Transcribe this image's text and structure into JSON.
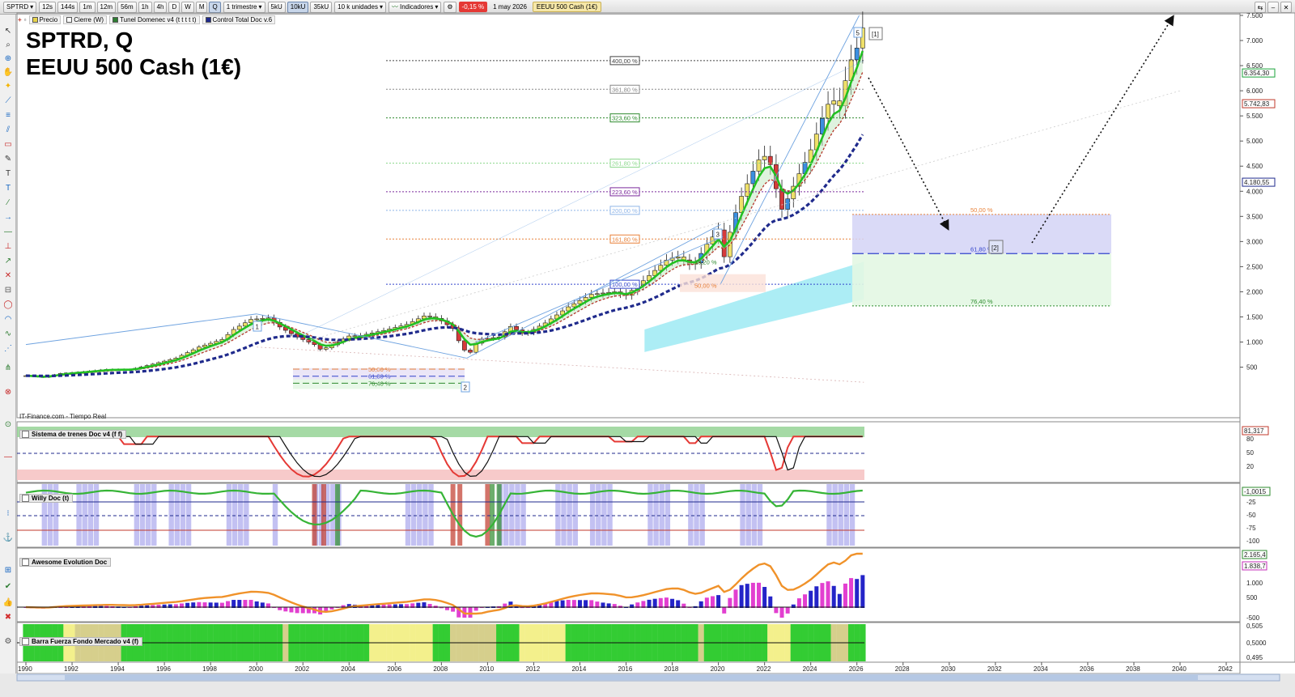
{
  "toolbar": {
    "symbol": "SPTRD",
    "intervals": [
      "12s",
      "144s",
      "1m",
      "12m",
      "56m",
      "1h",
      "4h",
      "D",
      "W",
      "M",
      "Q"
    ],
    "period_label": "1 trimestre",
    "units": [
      "5kU",
      "10kU",
      "35kU"
    ],
    "units_select": "10 k unidades",
    "indicators_label": "Indicadores",
    "change_pct": "-0,15 %",
    "date": "1 may 2026",
    "instrument": "EEUU 500 Cash (1€)"
  },
  "legend": {
    "price": "Precio",
    "close": "Cierre (W)",
    "tunnel": "Tunel Domenec v4 (t t t t t)",
    "control": "Control Total Doc v.6"
  },
  "title": {
    "line1": "SPTRD, Q",
    "line2": "EEUU 500 Cash (1€)"
  },
  "watermark": "IT-Finance.com - Tiempo Real",
  "panels": {
    "trend": "Sistema de trenes Doc v4 (f f)",
    "willy": "Willy Doc (t)",
    "awesome": "Awesome Evolution Doc",
    "barra": "Barra Fuerza Fondo Mercado v4 (f)"
  },
  "price_axis": {
    "ticks": [
      "7.500",
      "7.000",
      "6.500",
      "6.000",
      "5.500",
      "5.000",
      "4.500",
      "4.000",
      "3.500",
      "3.000",
      "2.500",
      "2.000",
      "1.500",
      "1.000",
      "500"
    ],
    "markers": [
      {
        "text": "6.354,30",
        "color": "#1aa33a"
      },
      {
        "text": "5.742,83",
        "color": "#c0392b"
      },
      {
        "text": "4.180,55",
        "color": "#1f2a8c"
      }
    ]
  },
  "trend_axis": {
    "ticks": [
      "80",
      "50",
      "20"
    ],
    "marker": "81,317"
  },
  "willy_axis": {
    "ticks": [
      "-25",
      "-50",
      "-75",
      "-100"
    ],
    "marker": "-1,0015"
  },
  "awesome_axis": {
    "ticks": [
      "1.000",
      "500",
      "-500"
    ],
    "markers": [
      "2.165,4",
      "1.838,7"
    ]
  },
  "barra_axis": {
    "ticks": [
      "0,505",
      "0,5000",
      "0,495"
    ]
  },
  "years": [
    "1990",
    "1992",
    "1994",
    "1996",
    "1998",
    "2000",
    "2002",
    "2004",
    "2006",
    "2008",
    "2010",
    "2012",
    "2014",
    "2016",
    "2018",
    "2020",
    "2022",
    "2024",
    "2026",
    "2028",
    "2030",
    "2032",
    "2034",
    "2036",
    "2038",
    "2040",
    "2042"
  ],
  "fib_levels": [
    "400,00 %",
    "361,80 %",
    "323,60 %",
    "261,80 %",
    "223,60 %",
    "200,00 %",
    "161,80 %",
    "100,00 %"
  ],
  "retrace_2000": [
    "50,00 %",
    "61,80 %",
    "76,40 %"
  ],
  "retrace_2020": [
    "38,20 %",
    "50,00 %"
  ],
  "retrace_future": [
    "50,00 %",
    "61,80 %",
    "76,40 %"
  ],
  "wave_labels": [
    "1",
    "2",
    "3",
    "5",
    "[1]",
    "[2]"
  ],
  "chart_data": {
    "type": "candlestick",
    "title": "SPTRD, Q",
    "subtitle": "EEUU 500 Cash (1€)",
    "interval": "1 trimestre",
    "x_range": [
      1990,
      2042
    ],
    "y_range": [
      0,
      7800
    ],
    "quarterly_close_approx": [
      [
        1990,
        340
      ],
      [
        1991,
        375
      ],
      [
        1992,
        410
      ],
      [
        1993,
        450
      ],
      [
        1994,
        455
      ],
      [
        1995,
        560
      ],
      [
        1996,
        700
      ],
      [
        1997,
        920
      ],
      [
        1998,
        1150
      ],
      [
        1999,
        1400
      ],
      [
        2000,
        1450
      ],
      [
        2001,
        1150
      ],
      [
        2002,
        880
      ],
      [
        2003,
        1080
      ],
      [
        2004,
        1200
      ],
      [
        2005,
        1250
      ],
      [
        2006,
        1400
      ],
      [
        2007,
        1480
      ],
      [
        2008,
        900
      ],
      [
        2009,
        1100
      ],
      [
        2010,
        1250
      ],
      [
        2011,
        1260
      ],
      [
        2012,
        1420
      ],
      [
        2013,
        1800
      ],
      [
        2014,
        2050
      ],
      [
        2015,
        2040
      ],
      [
        2016,
        2250
      ],
      [
        2017,
        2680
      ],
      [
        2018,
        2510
      ],
      [
        2019,
        3230
      ],
      [
        2020,
        3750
      ],
      [
        2021,
        4770
      ],
      [
        2022,
        3840
      ],
      [
        2023,
        4770
      ],
      [
        2024,
        5880
      ],
      [
        2025,
        6850
      ],
      [
        2026,
        7250
      ]
    ],
    "lines": {
      "green_ema": 6354.3,
      "red_dashed": 5742.83,
      "navy_dotted": 4180.55
    }
  }
}
